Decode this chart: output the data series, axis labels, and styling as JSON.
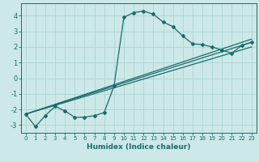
{
  "xlabel": "Humidex (Indice chaleur)",
  "ylabel": "",
  "xlim": [
    -0.5,
    23.5
  ],
  "ylim": [
    -3.5,
    4.8
  ],
  "xticks": [
    0,
    1,
    2,
    3,
    4,
    5,
    6,
    7,
    8,
    9,
    10,
    11,
    12,
    13,
    14,
    15,
    16,
    17,
    18,
    19,
    20,
    21,
    22,
    23
  ],
  "yticks": [
    -3,
    -2,
    -1,
    0,
    1,
    2,
    3,
    4
  ],
  "bg_color": "#cce8e8",
  "line_color": "#1a6b6b",
  "grid_color": "#aed4d4",
  "curve1_x": [
    0,
    1,
    2,
    3,
    4,
    5,
    6,
    7,
    8,
    9,
    10,
    11,
    12,
    13,
    14,
    15,
    16,
    17,
    18,
    19,
    20,
    21,
    22,
    23
  ],
  "curve1_y": [
    -2.3,
    -3.1,
    -2.4,
    -1.8,
    -2.1,
    -2.5,
    -2.5,
    -2.4,
    -2.2,
    -0.5,
    3.9,
    4.2,
    4.3,
    4.1,
    3.6,
    3.3,
    2.7,
    2.2,
    2.15,
    2.0,
    1.8,
    1.6,
    2.1,
    2.3
  ],
  "curve2_x": [
    0,
    23
  ],
  "curve2_y": [
    -2.3,
    2.3
  ],
  "curve3_x": [
    0,
    23
  ],
  "curve3_y": [
    -2.3,
    2.5
  ],
  "curve4_x": [
    0,
    23
  ],
  "curve4_y": [
    -2.3,
    2.0
  ]
}
